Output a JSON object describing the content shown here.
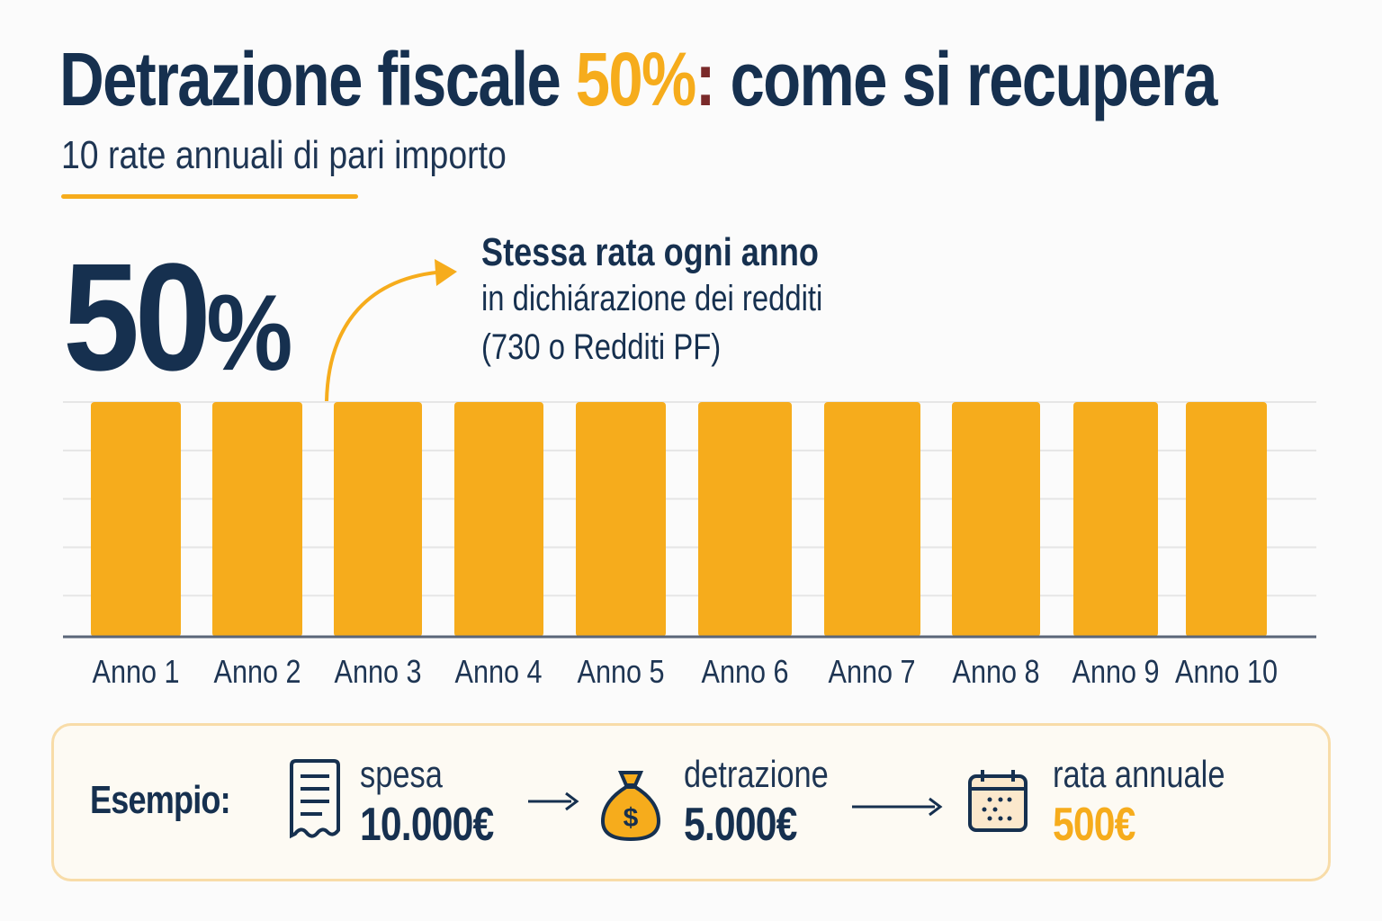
{
  "title": {
    "part1": "Detrazione fiscale ",
    "highlight": "50%",
    "colon": ":",
    "part2": " come si recupera"
  },
  "subtitle": "10 rate annuali di pari importo",
  "big_percent": {
    "number": "50",
    "symbol": "%"
  },
  "note": {
    "title": "Stessa rata ogni anno",
    "line1": "in dichiárazione dei redditi",
    "line2": "(730 o Redditi PF)"
  },
  "colors": {
    "navy": "#16304f",
    "accent": "#f6ac1c",
    "grid": "#e6e6e6"
  },
  "chart_data": {
    "type": "bar",
    "title": "",
    "xlabel": "",
    "ylabel": "",
    "categories": [
      "Anno 1",
      "Anno 2",
      "Anno 3",
      "Anno 4",
      "Anno 5",
      "Anno 6",
      "Anno 7",
      "Anno 8",
      "Anno 9",
      "Anno 10"
    ],
    "values": [
      500,
      500,
      500,
      500,
      500,
      500,
      500,
      500,
      500,
      500
    ],
    "ylim": [
      0,
      500
    ],
    "grid": true,
    "legend": "none"
  },
  "example": {
    "label": "Esempio:",
    "steps": [
      {
        "icon": "receipt-icon",
        "label": "spesa",
        "value": "10.000€"
      },
      {
        "icon": "money-bag-icon",
        "label": "detrazione",
        "value": "5.000€"
      },
      {
        "icon": "calendar-icon",
        "label": "rata annuale",
        "value": "500€"
      }
    ],
    "money_symbol": "$"
  }
}
